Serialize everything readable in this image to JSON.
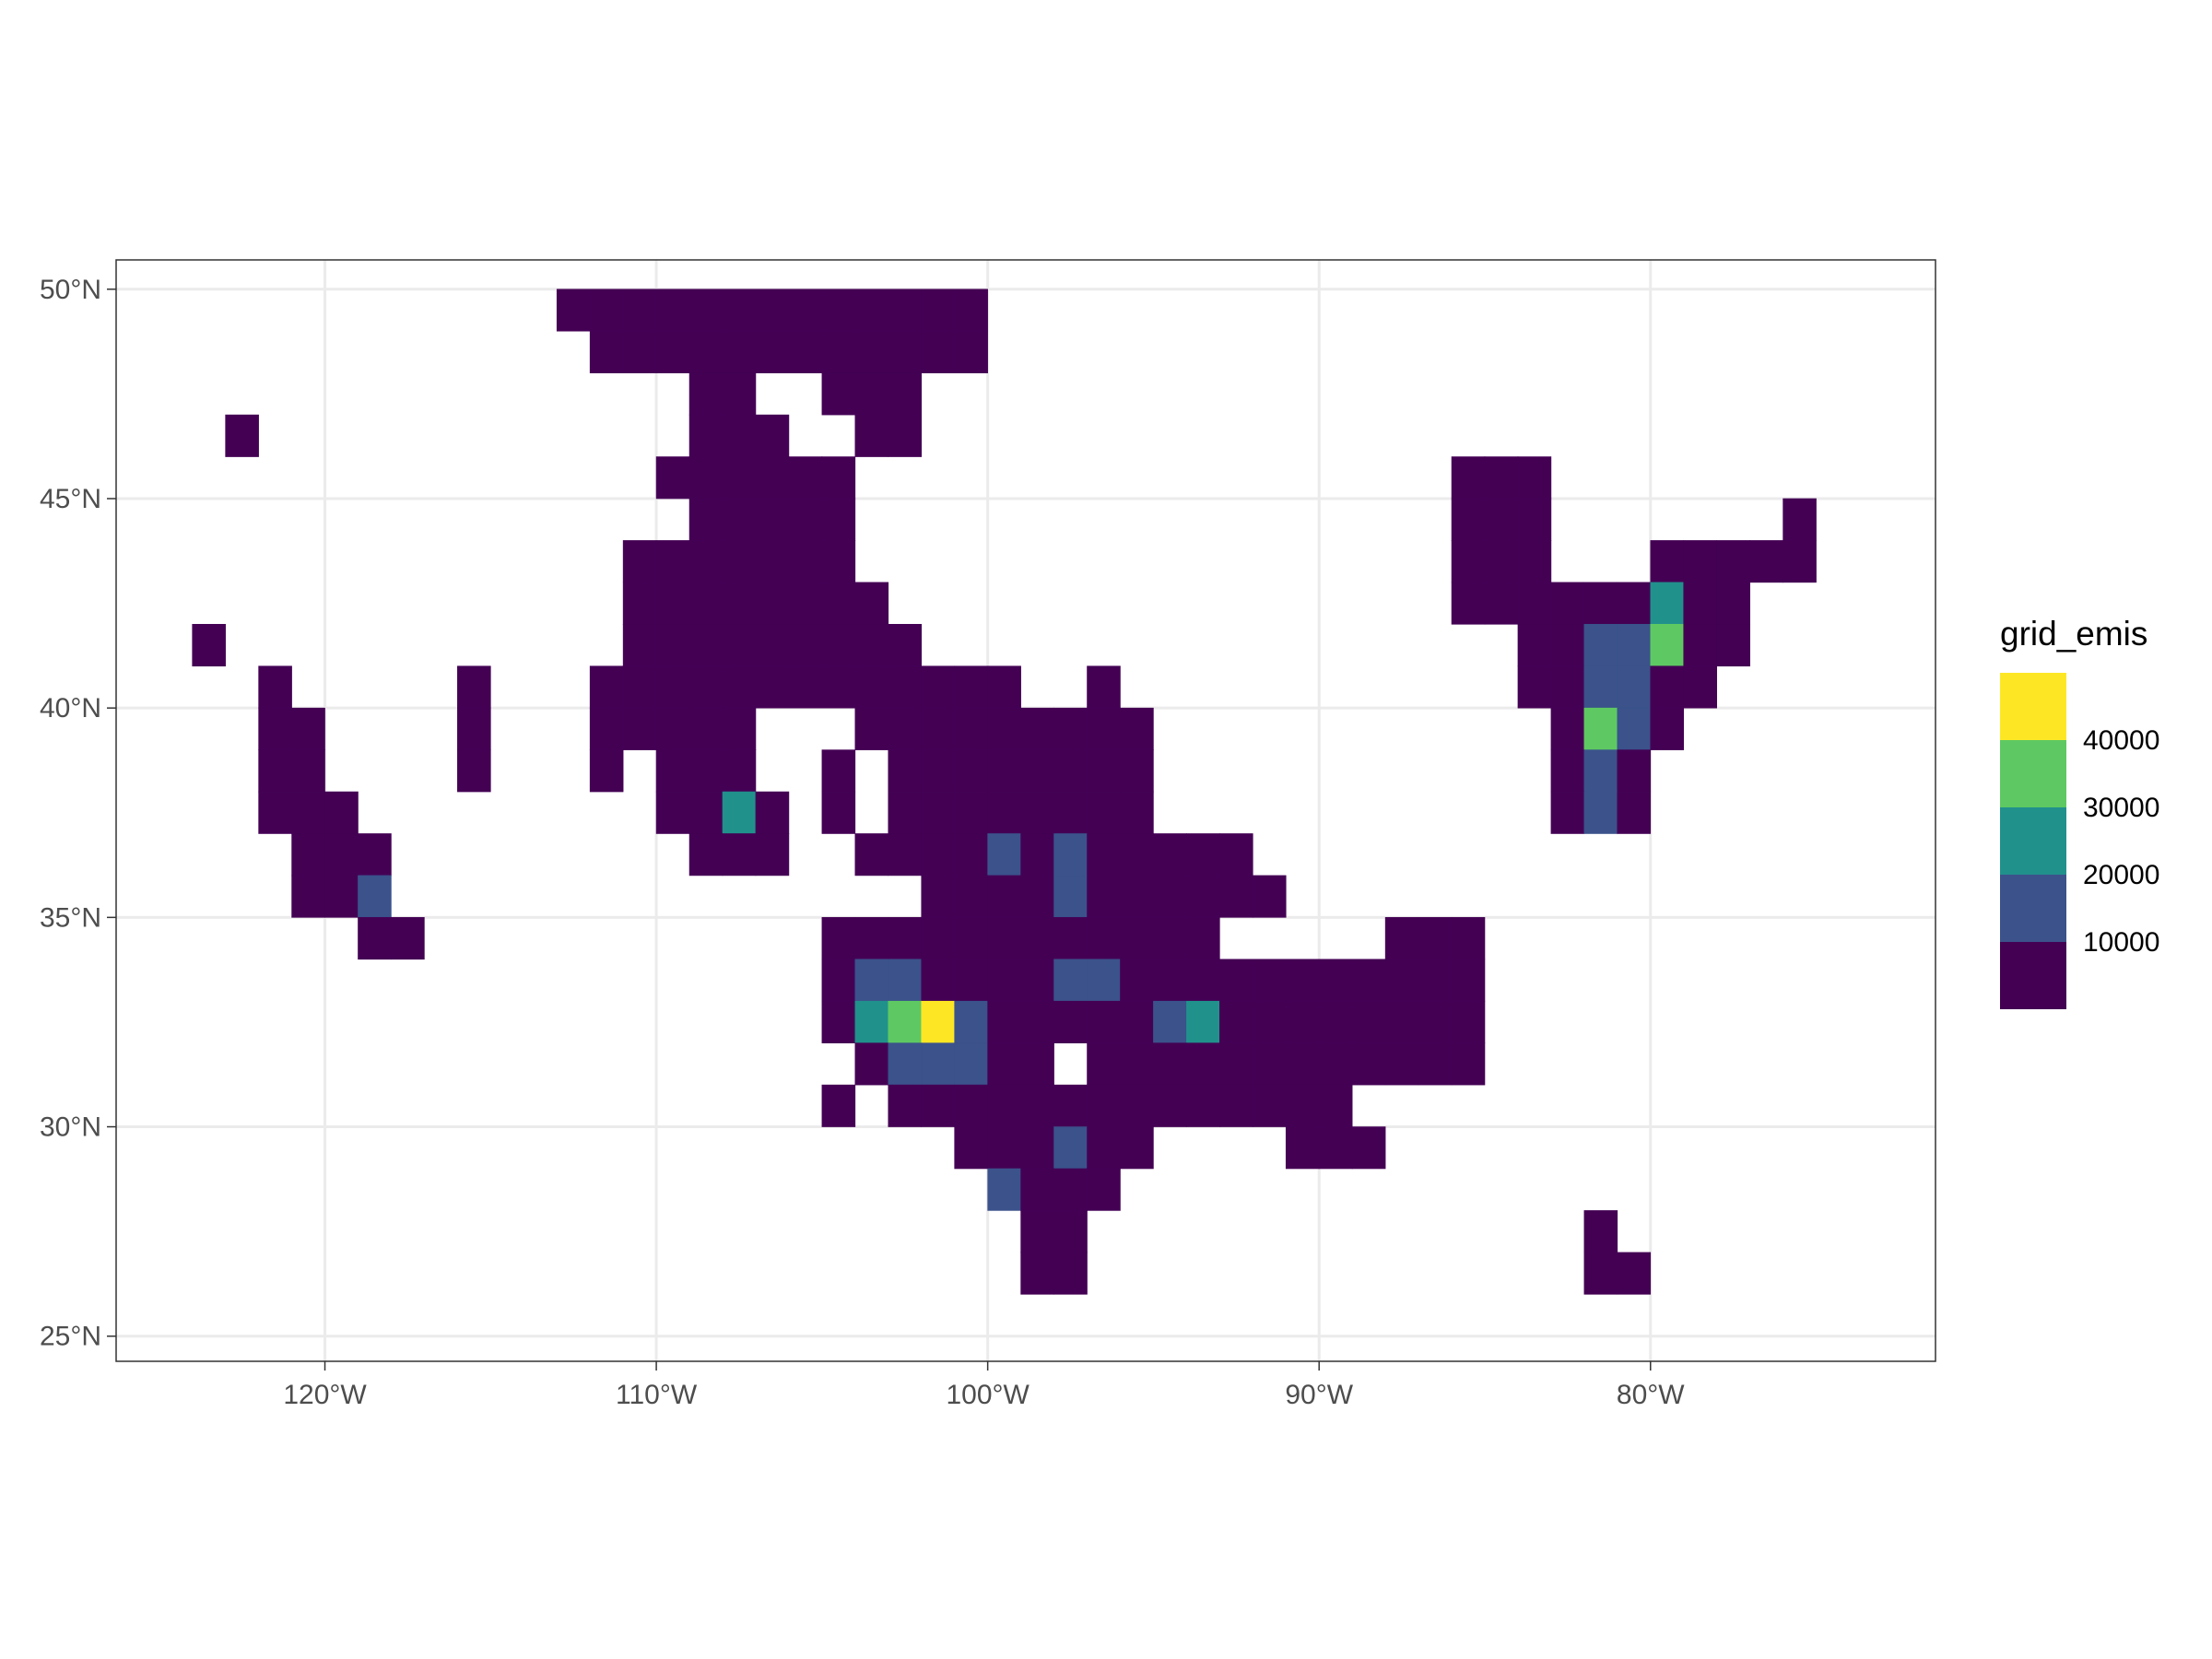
{
  "chart_data": {
    "type": "heatmap",
    "title": "",
    "xlabel": "",
    "ylabel": "",
    "xlim": [
      -126.3,
      -71.4
    ],
    "ylim": [
      24.4,
      50.7
    ],
    "cell_size_deg": 1.0,
    "grid": true,
    "legend_position": "right",
    "x_ticks": [
      {
        "value": -120,
        "label": "120°W"
      },
      {
        "value": -110,
        "label": "110°W"
      },
      {
        "value": -100,
        "label": "100°W"
      },
      {
        "value": -90,
        "label": "90°W"
      },
      {
        "value": -80,
        "label": "80°W"
      }
    ],
    "y_ticks": [
      {
        "value": 25,
        "label": "25°N"
      },
      {
        "value": 30,
        "label": "30°N"
      },
      {
        "value": 35,
        "label": "35°N"
      },
      {
        "value": 40,
        "label": "40°N"
      },
      {
        "value": 45,
        "label": "45°N"
      },
      {
        "value": 50,
        "label": "50°N"
      }
    ],
    "colors": [
      "#440154",
      "#3b528b",
      "#21918c",
      "#5ec962",
      "#fde725"
    ],
    "legend": {
      "title": "grid_emis",
      "labels": [
        "40000",
        "30000",
        "20000",
        "10000"
      ]
    },
    "cell_rows": [
      {
        "lat": 49.5,
        "runs": [
          [
            -113,
            -101,
            0
          ]
        ]
      },
      {
        "lat": 48.5,
        "runs": [
          [
            -112,
            -101,
            0
          ]
        ]
      },
      {
        "lat": 47.5,
        "runs": [
          [
            -109,
            -108,
            0
          ],
          [
            -105,
            -103,
            0
          ]
        ]
      },
      {
        "lat": 46.5,
        "runs": [
          [
            -123,
            -123,
            0
          ],
          [
            -109,
            -107,
            0
          ],
          [
            -104,
            -103,
            0
          ]
        ]
      },
      {
        "lat": 45.5,
        "runs": [
          [
            -110,
            -105,
            0
          ],
          [
            -86,
            -84,
            0
          ]
        ]
      },
      {
        "lat": 44.5,
        "runs": [
          [
            -109,
            -105,
            0
          ],
          [
            -86,
            -84,
            0
          ],
          [
            -76,
            -76,
            0
          ]
        ]
      },
      {
        "lat": 43.5,
        "runs": [
          [
            -111,
            -105,
            0
          ],
          [
            -86,
            -84,
            0
          ],
          [
            -80,
            -76,
            0
          ]
        ]
      },
      {
        "lat": 42.5,
        "runs": [
          [
            -111,
            -104,
            0
          ],
          [
            -86,
            -81,
            0
          ],
          [
            -80,
            -80,
            2
          ],
          [
            -79,
            -78,
            0
          ]
        ]
      },
      {
        "lat": 41.5,
        "runs": [
          [
            -124,
            -124,
            0
          ],
          [
            -111,
            -103,
            0
          ],
          [
            -84,
            -83,
            0
          ],
          [
            -82,
            -81,
            1
          ],
          [
            -80,
            -80,
            3
          ],
          [
            -79,
            -78,
            0
          ]
        ]
      },
      {
        "lat": 40.5,
        "runs": [
          [
            -122,
            -122,
            0
          ],
          [
            -116,
            -116,
            0
          ],
          [
            -112,
            -100,
            0
          ],
          [
            -97,
            -97,
            0
          ],
          [
            -84,
            -83,
            0
          ],
          [
            -82,
            -81,
            1
          ],
          [
            -80,
            -79,
            0
          ]
        ]
      },
      {
        "lat": 39.5,
        "runs": [
          [
            -122,
            -121,
            0
          ],
          [
            -116,
            -116,
            0
          ],
          [
            -112,
            -108,
            0
          ],
          [
            -104,
            -96,
            0
          ],
          [
            -83,
            -83,
            0
          ],
          [
            -82,
            -82,
            3
          ],
          [
            -81,
            -81,
            1
          ],
          [
            -80,
            -80,
            0
          ]
        ]
      },
      {
        "lat": 38.5,
        "runs": [
          [
            -122,
            -121,
            0
          ],
          [
            -116,
            -116,
            0
          ],
          [
            -112,
            -112,
            0
          ],
          [
            -110,
            -108,
            0
          ],
          [
            -105,
            -105,
            0
          ],
          [
            -103,
            -96,
            0
          ],
          [
            -83,
            -83,
            0
          ],
          [
            -82,
            -82,
            1
          ],
          [
            -81,
            -81,
            0
          ]
        ]
      },
      {
        "lat": 37.5,
        "runs": [
          [
            -122,
            -120,
            0
          ],
          [
            -110,
            -109,
            0
          ],
          [
            -108,
            -108,
            2
          ],
          [
            -107,
            -107,
            0
          ],
          [
            -105,
            -105,
            0
          ],
          [
            -103,
            -96,
            0
          ],
          [
            -83,
            -83,
            0
          ],
          [
            -82,
            -82,
            1
          ],
          [
            -81,
            -81,
            0
          ]
        ]
      },
      {
        "lat": 36.5,
        "runs": [
          [
            -121,
            -119,
            0
          ],
          [
            -109,
            -107,
            0
          ],
          [
            -104,
            -101,
            0
          ],
          [
            -100,
            -100,
            1
          ],
          [
            -99,
            -99,
            0
          ],
          [
            -98,
            -98,
            1
          ],
          [
            -97,
            -93,
            0
          ]
        ]
      },
      {
        "lat": 35.5,
        "runs": [
          [
            -121,
            -120,
            0
          ],
          [
            -119,
            -119,
            1
          ],
          [
            -102,
            -99,
            0
          ],
          [
            -98,
            -98,
            1
          ],
          [
            -97,
            -92,
            0
          ]
        ]
      },
      {
        "lat": 34.5,
        "runs": [
          [
            -119,
            -118,
            0
          ],
          [
            -105,
            -94,
            0
          ],
          [
            -88,
            -86,
            0
          ]
        ]
      },
      {
        "lat": 33.5,
        "runs": [
          [
            -105,
            -105,
            0
          ],
          [
            -104,
            -103,
            1
          ],
          [
            -102,
            -99,
            0
          ],
          [
            -98,
            -97,
            1
          ],
          [
            -96,
            -86,
            0
          ]
        ]
      },
      {
        "lat": 32.5,
        "runs": [
          [
            -105,
            -105,
            0
          ],
          [
            -104,
            -104,
            2
          ],
          [
            -103,
            -103,
            3
          ],
          [
            -102,
            -102,
            4
          ],
          [
            -101,
            -101,
            1
          ],
          [
            -100,
            -96,
            0
          ],
          [
            -95,
            -95,
            1
          ],
          [
            -94,
            -94,
            2
          ],
          [
            -93,
            -86,
            0
          ]
        ]
      },
      {
        "lat": 31.5,
        "runs": [
          [
            -104,
            -104,
            0
          ],
          [
            -103,
            -101,
            1
          ],
          [
            -100,
            -99,
            0
          ],
          [
            -97,
            -86,
            0
          ]
        ]
      },
      {
        "lat": 30.5,
        "runs": [
          [
            -105,
            -105,
            0
          ],
          [
            -103,
            -90,
            0
          ]
        ]
      },
      {
        "lat": 29.5,
        "runs": [
          [
            -101,
            -99,
            0
          ],
          [
            -98,
            -98,
            1
          ],
          [
            -97,
            -96,
            0
          ],
          [
            -91,
            -89,
            0
          ]
        ]
      },
      {
        "lat": 28.5,
        "runs": [
          [
            -100,
            -100,
            1
          ],
          [
            -99,
            -97,
            0
          ]
        ]
      },
      {
        "lat": 27.5,
        "runs": [
          [
            -99,
            -98,
            0
          ],
          [
            -82,
            -82,
            0
          ]
        ]
      },
      {
        "lat": 26.5,
        "runs": [
          [
            -99,
            -98,
            0
          ],
          [
            -82,
            -81,
            0
          ]
        ]
      }
    ]
  }
}
